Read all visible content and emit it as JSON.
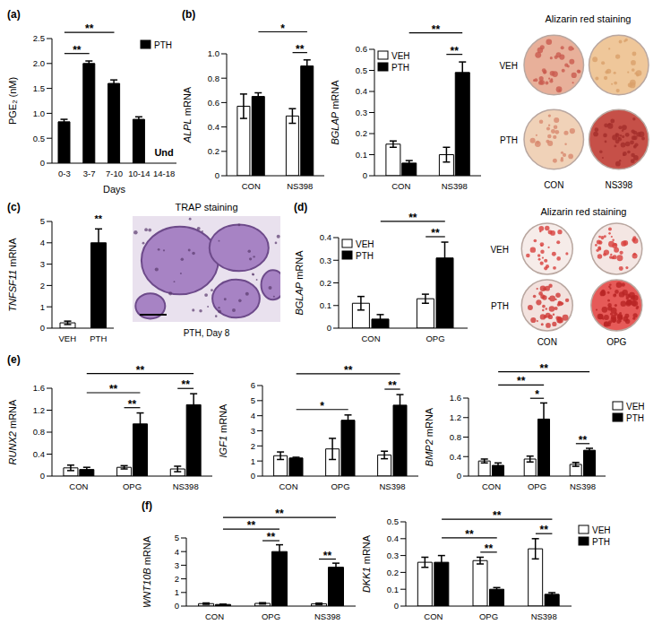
{
  "chart_data": [
    {
      "type": "bar",
      "panel": "(a)",
      "y_label": "PGE₂ (nM)",
      "x_label": "Days",
      "categories": [
        "0-3",
        "3-7",
        "7-10",
        "10-14",
        "14-18"
      ],
      "series": [
        {
          "name": "PTH",
          "color": "#000000",
          "values": [
            0.83,
            2.0,
            1.6,
            0.88,
            null
          ],
          "errors": [
            0.05,
            0.05,
            0.07,
            0.05,
            null
          ]
        }
      ],
      "ylim": [
        0,
        2.5
      ],
      "yticks": [
        0,
        0.5,
        {
          "value": 1,
          "label": "1.0"
        },
        1.5,
        {
          "value": 2,
          "label": "2.0"
        },
        2.5
      ],
      "legend": "top-right",
      "annotations": [
        {
          "category": "14-18",
          "text": "Und"
        }
      ],
      "significance": [
        {
          "from": [
            "0-3",
            "PTH"
          ],
          "to": [
            "3-7",
            "PTH"
          ],
          "label": "**"
        },
        {
          "from": [
            "0-3",
            "PTH"
          ],
          "to": [
            "7-10",
            "PTH"
          ],
          "label": "**"
        }
      ]
    },
    {
      "type": "bar",
      "panel": "(b)",
      "y_label": "ALPL mRNA",
      "categories": [
        "CON",
        "NS398"
      ],
      "series": [
        {
          "name": "VEH",
          "color": "#ffffff",
          "values": [
            0.57,
            0.49
          ],
          "errors": [
            0.1,
            0.06
          ]
        },
        {
          "name": "PTH",
          "color": "#000000",
          "values": [
            0.65,
            0.9
          ],
          "errors": [
            0.03,
            0.05
          ]
        }
      ],
      "ylim": [
        0,
        1
      ],
      "yticks": [
        0,
        0.2,
        0.4,
        0.6,
        0.8,
        {
          "value": 1,
          "label": "1.0"
        }
      ],
      "significance": [
        {
          "from": [
            "NS398",
            "VEH"
          ],
          "to": [
            "NS398",
            "PTH"
          ],
          "label": "**"
        },
        {
          "from": [
            "CON",
            "PTH"
          ],
          "to": [
            "NS398",
            "PTH"
          ],
          "label": "*"
        }
      ]
    },
    {
      "type": "bar",
      "y_label": "BGLAP mRNA",
      "categories": [
        "CON",
        "NS398"
      ],
      "series": [
        {
          "name": "VEH",
          "color": "#ffffff",
          "values": [
            0.15,
            0.1
          ],
          "errors": [
            0.015,
            0.035
          ]
        },
        {
          "name": "PTH",
          "color": "#000000",
          "values": [
            0.06,
            0.49
          ],
          "errors": [
            0.012,
            0.05
          ]
        }
      ],
      "ylim": [
        0,
        0.6
      ],
      "yticks": [
        0,
        0.1,
        0.2,
        0.3,
        0.4,
        0.5,
        0.6
      ],
      "legend": "top-left",
      "significance": [
        {
          "from": [
            "NS398",
            "VEH"
          ],
          "to": [
            "NS398",
            "PTH"
          ],
          "label": "**"
        },
        {
          "from": [
            "CON",
            "PTH"
          ],
          "to": [
            "NS398",
            "PTH"
          ],
          "label": "**"
        }
      ]
    },
    {
      "type": "bar",
      "panel": "(c)",
      "y_label": "TNFSF11 mRNA",
      "categories": [
        "VEH",
        "PTH"
      ],
      "series": [
        {
          "colors": [
            "#ffffff",
            "#000000"
          ],
          "values": [
            0.25,
            4.0
          ],
          "errors": [
            0.08,
            0.65
          ]
        }
      ],
      "ylim": [
        0,
        5
      ],
      "yticks": [
        0,
        1,
        2,
        3,
        4,
        5
      ],
      "annotations": [
        {
          "category": "PTH",
          "text": "**"
        }
      ]
    },
    {
      "type": "bar",
      "panel": "(d)",
      "y_label": "BGLAP mRNA",
      "categories": [
        "CON",
        "OPG"
      ],
      "series": [
        {
          "name": "VEH",
          "color": "#ffffff",
          "values": [
            0.11,
            0.13
          ],
          "errors": [
            0.03,
            0.02
          ]
        },
        {
          "name": "PTH",
          "color": "#000000",
          "values": [
            0.04,
            0.31
          ],
          "errors": [
            0.02,
            0.07
          ]
        }
      ],
      "ylim": [
        0,
        0.4
      ],
      "yticks": [
        0,
        0.1,
        0.2,
        0.3,
        0.4
      ],
      "legend": "top-left",
      "significance": [
        {
          "from": [
            "OPG",
            "VEH"
          ],
          "to": [
            "OPG",
            "PTH"
          ],
          "label": "**"
        },
        {
          "from": [
            "CON",
            "PTH"
          ],
          "to": [
            "OPG",
            "PTH"
          ],
          "label": "**"
        }
      ]
    },
    {
      "type": "bar",
      "panel": "(e)",
      "y_label": "RUNX2 mRNA",
      "categories": [
        "CON",
        "OPG",
        "NS398"
      ],
      "series": [
        {
          "name": "VEH",
          "color": "#ffffff",
          "values": [
            0.15,
            0.16,
            0.13
          ],
          "errors": [
            0.05,
            0.03,
            0.05
          ]
        },
        {
          "name": "PTH",
          "color": "#000000",
          "values": [
            0.12,
            0.95,
            1.3
          ],
          "errors": [
            0.04,
            0.2,
            0.2
          ]
        }
      ],
      "ylim": [
        0,
        1.6
      ],
      "yticks": [
        0,
        0.4,
        0.8,
        1.2,
        1.6
      ],
      "significance": [
        {
          "from": [
            "OPG",
            "VEH"
          ],
          "to": [
            "OPG",
            "PTH"
          ],
          "label": "**"
        },
        {
          "from": [
            "NS398",
            "VEH"
          ],
          "to": [
            "NS398",
            "PTH"
          ],
          "label": "**"
        },
        {
          "from": [
            "CON",
            "PTH"
          ],
          "to": [
            "OPG",
            "PTH"
          ],
          "label": "**"
        },
        {
          "from": [
            "CON",
            "PTH"
          ],
          "to": [
            "NS398",
            "PTH"
          ],
          "label": "**"
        }
      ]
    },
    {
      "type": "bar",
      "y_label": "IGF1 mRNA",
      "categories": [
        "CON",
        "OPG",
        "NS398"
      ],
      "series": [
        {
          "name": "VEH",
          "color": "#ffffff",
          "values": [
            1.35,
            1.8,
            1.4
          ],
          "errors": [
            0.25,
            0.7,
            0.25
          ]
        },
        {
          "name": "PTH",
          "color": "#000000",
          "values": [
            1.2,
            3.7,
            4.7
          ],
          "errors": [
            0.05,
            0.35,
            0.7
          ]
        }
      ],
      "ylim": [
        0,
        6
      ],
      "yticks": [
        0,
        1,
        2,
        3,
        4,
        5,
        6
      ],
      "significance": [
        {
          "from": [
            "NS398",
            "VEH"
          ],
          "to": [
            "NS398",
            "PTH"
          ],
          "label": "**"
        },
        {
          "from": [
            "CON",
            "PTH"
          ],
          "to": [
            "OPG",
            "PTH"
          ],
          "label": "*"
        },
        {
          "from": [
            "CON",
            "PTH"
          ],
          "to": [
            "NS398",
            "PTH"
          ],
          "label": "**"
        }
      ]
    },
    {
      "type": "bar",
      "y_label": "BMP2 mRNA",
      "categories": [
        "CON",
        "OPG",
        "NS398"
      ],
      "series": [
        {
          "name": "VEH",
          "color": "#ffffff",
          "values": [
            0.31,
            0.35,
            0.24
          ],
          "errors": [
            0.04,
            0.06,
            0.04
          ]
        },
        {
          "name": "PTH",
          "color": "#000000",
          "values": [
            0.22,
            1.17,
            0.53
          ],
          "errors": [
            0.05,
            0.33,
            0.04
          ]
        }
      ],
      "ylim": [
        0,
        1.6
      ],
      "yticks": [
        0,
        0.4,
        0.8,
        1.2,
        1.6
      ],
      "legend": "right",
      "significance": [
        {
          "from": [
            "OPG",
            "VEH"
          ],
          "to": [
            "OPG",
            "PTH"
          ],
          "label": "*"
        },
        {
          "from": [
            "NS398",
            "VEH"
          ],
          "to": [
            "NS398",
            "PTH"
          ],
          "label": "**"
        },
        {
          "from": [
            "CON",
            "PTH"
          ],
          "to": [
            "OPG",
            "PTH"
          ],
          "label": "**"
        },
        {
          "from": [
            "CON",
            "PTH"
          ],
          "to": [
            "NS398",
            "PTH"
          ],
          "label": "**"
        }
      ]
    },
    {
      "type": "bar",
      "panel": "(f)",
      "y_label": "WNT10B mRNA",
      "categories": [
        "CON",
        "OPG",
        "NS398"
      ],
      "series": [
        {
          "name": "VEH",
          "color": "#ffffff",
          "values": [
            0.18,
            0.2,
            0.17
          ],
          "errors": [
            0.05,
            0.05,
            0.05
          ]
        },
        {
          "name": "PTH",
          "color": "#000000",
          "values": [
            0.12,
            4.0,
            2.85
          ],
          "errors": [
            0.03,
            0.5,
            0.3
          ]
        }
      ],
      "ylim": [
        0,
        5
      ],
      "yticks": [
        0,
        1,
        2,
        3,
        4,
        5
      ],
      "significance": [
        {
          "from": [
            "OPG",
            "VEH"
          ],
          "to": [
            "OPG",
            "PTH"
          ],
          "label": "**"
        },
        {
          "from": [
            "NS398",
            "VEH"
          ],
          "to": [
            "NS398",
            "PTH"
          ],
          "label": "**"
        },
        {
          "from": [
            "CON",
            "PTH"
          ],
          "to": [
            "OPG",
            "PTH"
          ],
          "label": "**"
        },
        {
          "from": [
            "CON",
            "PTH"
          ],
          "to": [
            "NS398",
            "PTH"
          ],
          "label": "**"
        }
      ]
    },
    {
      "type": "bar",
      "y_label": "DKK1 mRNA",
      "categories": [
        "CON",
        "OPG",
        "NS398"
      ],
      "series": [
        {
          "name": "VEH",
          "color": "#ffffff",
          "values": [
            0.26,
            0.27,
            0.34
          ],
          "errors": [
            0.03,
            0.02,
            0.06
          ]
        },
        {
          "name": "PTH",
          "color": "#000000",
          "values": [
            0.26,
            0.1,
            0.07
          ],
          "errors": [
            0.04,
            0.01,
            0.01
          ]
        }
      ],
      "ylim": [
        0,
        0.5
      ],
      "yticks": [
        0,
        0.1,
        0.2,
        0.3,
        0.4,
        0.5
      ],
      "legend": "right",
      "significance": [
        {
          "from": [
            "OPG",
            "VEH"
          ],
          "to": [
            "OPG",
            "PTH"
          ],
          "label": "**"
        },
        {
          "from": [
            "NS398",
            "VEH"
          ],
          "to": [
            "NS398",
            "PTH"
          ],
          "label": "**"
        },
        {
          "from": [
            "CON",
            "PTH"
          ],
          "to": [
            "OPG",
            "PTH"
          ],
          "label": "**"
        },
        {
          "from": [
            "CON",
            "PTH"
          ],
          "to": [
            "NS398",
            "PTH"
          ],
          "label": "**"
        }
      ]
    }
  ],
  "images": [
    {
      "type": "plate_grid",
      "title": "Alizarin red staining",
      "rows": [
        "VEH",
        "PTH"
      ],
      "columns": [
        "CON",
        "NS398"
      ]
    },
    {
      "type": "micrograph",
      "title": "TRAP staining",
      "caption": "PTH, Day 8"
    },
    {
      "type": "plate_grid",
      "title": "Alizarin red staining",
      "rows": [
        "VEH",
        "PTH"
      ],
      "columns": [
        "CON",
        "OPG"
      ]
    }
  ]
}
